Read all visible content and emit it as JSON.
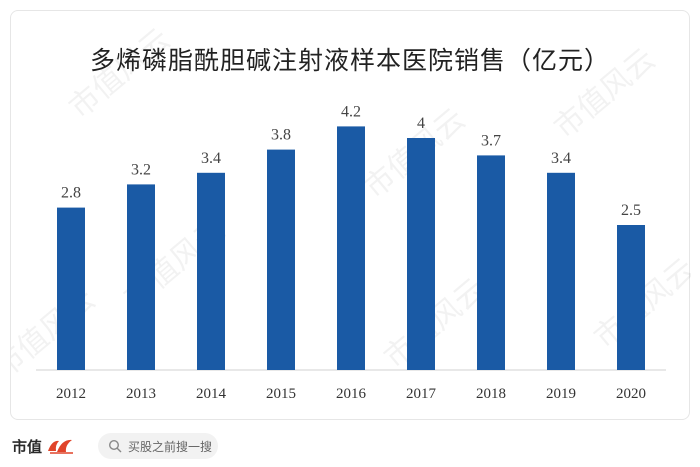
{
  "chart_data": {
    "type": "bar",
    "title": "多烯磷脂酰胆碱注射液样本医院销售（亿元）",
    "categories": [
      "2012",
      "2013",
      "2014",
      "2015",
      "2016",
      "2017",
      "2018",
      "2019",
      "2020"
    ],
    "values": [
      2.8,
      3.2,
      3.4,
      3.8,
      4.2,
      4,
      3.7,
      3.4,
      2.5
    ],
    "data_labels": [
      "2.8",
      "3.2",
      "3.4",
      "3.8",
      "4.2",
      "4",
      "3.7",
      "3.4",
      "2.5"
    ],
    "ylim": [
      0,
      4.5
    ],
    "grid": false,
    "legend": "none",
    "bar_color": "#1a5aa5"
  },
  "watermark": "市值风云",
  "footer": {
    "brand": "市值",
    "search_label": "买股之前搜一搜"
  },
  "colors": {
    "bar": "#1a5aa5",
    "axis": "#d0d0d0",
    "logo": "#e0442a"
  }
}
